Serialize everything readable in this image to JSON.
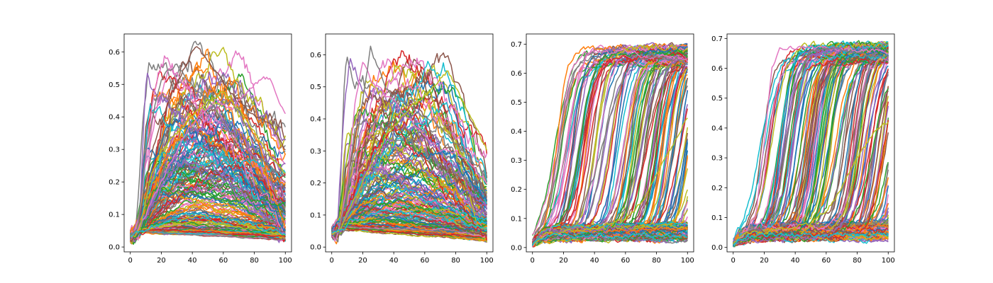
{
  "figure": {
    "panel_count": 4
  },
  "palette": [
    "#1f77b4",
    "#ff7f0e",
    "#2ca02c",
    "#d62728",
    "#9467bd",
    "#8c564b",
    "#e377c2",
    "#7f7f7f",
    "#bcbd22",
    "#17becf"
  ],
  "chart_data": [
    {
      "type": "line",
      "title": "",
      "xlabel": "",
      "ylabel": "",
      "xlim": [
        -4,
        104
      ],
      "ylim": [
        -0.015,
        0.655
      ],
      "x_ticks": [
        0,
        20,
        40,
        60,
        80,
        100
      ],
      "x_tick_labels": [
        "0",
        "20",
        "40",
        "60",
        "80",
        "100"
      ],
      "y_ticks": [
        0.0,
        0.1,
        0.2,
        0.3,
        0.4,
        0.5,
        0.6
      ],
      "y_tick_labels": [
        "0.0",
        "0.1",
        "0.2",
        "0.3",
        "0.4",
        "0.5",
        "0.6"
      ],
      "grid": false,
      "legend": "none",
      "series_count": 200,
      "pattern": "rise-and-fall",
      "x": {
        "start": 0,
        "end": 100,
        "step": 1
      },
      "start_value": 0.03,
      "peak_range": [
        0.04,
        0.6
      ],
      "peak_x_range": [
        10,
        75
      ],
      "end_range": [
        0.02,
        0.4
      ],
      "series": [
        {
          "x": [
            0,
            5,
            12,
            20,
            30,
            42,
            50,
            60,
            70,
            80,
            90,
            100
          ],
          "y": [
            0.03,
            0.06,
            0.25,
            0.4,
            0.5,
            0.62,
            0.57,
            0.5,
            0.45,
            0.4,
            0.38,
            0.3
          ]
        },
        {
          "x": [
            0,
            5,
            15,
            25,
            35,
            45,
            55,
            65,
            75,
            85,
            90,
            100
          ],
          "y": [
            0.03,
            0.05,
            0.15,
            0.25,
            0.35,
            0.4,
            0.45,
            0.42,
            0.48,
            0.52,
            0.52,
            0.4
          ]
        },
        {
          "x": [
            0,
            5,
            10,
            20,
            30,
            40,
            50,
            60,
            70,
            80,
            90,
            100
          ],
          "y": [
            0.03,
            0.06,
            0.3,
            0.52,
            0.56,
            0.5,
            0.45,
            0.38,
            0.3,
            0.28,
            0.25,
            0.22
          ]
        },
        {
          "x": [
            0,
            6,
            12,
            20,
            30,
            40,
            50,
            60,
            70,
            80,
            90,
            100
          ],
          "y": [
            0.03,
            0.05,
            0.2,
            0.3,
            0.35,
            0.4,
            0.45,
            0.48,
            0.42,
            0.35,
            0.28,
            0.22
          ]
        },
        {
          "x": [
            0,
            5,
            15,
            25,
            35,
            45,
            55,
            65,
            75,
            85,
            95,
            100
          ],
          "y": [
            0.03,
            0.04,
            0.06,
            0.08,
            0.1,
            0.1,
            0.09,
            0.08,
            0.07,
            0.06,
            0.05,
            0.04
          ]
        }
      ]
    },
    {
      "type": "line",
      "title": "",
      "xlabel": "",
      "ylabel": "",
      "xlim": [
        -4,
        104
      ],
      "ylim": [
        -0.015,
        0.665
      ],
      "x_ticks": [
        0,
        20,
        40,
        60,
        80,
        100
      ],
      "x_tick_labels": [
        "0",
        "20",
        "40",
        "60",
        "80",
        "100"
      ],
      "y_ticks": [
        0.0,
        0.1,
        0.2,
        0.3,
        0.4,
        0.5,
        0.6
      ],
      "y_tick_labels": [
        "0.0",
        "0.1",
        "0.2",
        "0.3",
        "0.4",
        "0.5",
        "0.6"
      ],
      "grid": false,
      "legend": "none",
      "series_count": 200,
      "pattern": "rise-and-fall",
      "x": {
        "start": 0,
        "end": 100,
        "step": 1
      },
      "start_value": 0.045,
      "peak_range": [
        0.05,
        0.6
      ],
      "peak_x_range": [
        8,
        80
      ],
      "end_range": [
        0.02,
        0.3
      ],
      "series": [
        {
          "x": [
            0,
            5,
            10,
            15,
            20,
            25,
            30,
            40,
            50,
            60,
            70,
            80,
            90,
            100
          ],
          "y": [
            0.045,
            0.06,
            0.2,
            0.45,
            0.58,
            0.52,
            0.5,
            0.45,
            0.4,
            0.35,
            0.3,
            0.3,
            0.25,
            0.2
          ]
        },
        {
          "x": [
            0,
            5,
            15,
            25,
            35,
            45,
            55,
            65,
            75,
            85,
            95,
            100
          ],
          "y": [
            0.045,
            0.06,
            0.3,
            0.62,
            0.5,
            0.45,
            0.42,
            0.4,
            0.35,
            0.3,
            0.25,
            0.2
          ]
        },
        {
          "x": [
            0,
            5,
            15,
            25,
            35,
            45,
            55,
            65,
            75,
            85,
            95,
            100
          ],
          "y": [
            0.045,
            0.05,
            0.15,
            0.25,
            0.35,
            0.4,
            0.45,
            0.5,
            0.55,
            0.45,
            0.35,
            0.3
          ]
        },
        {
          "x": [
            0,
            6,
            12,
            24,
            36,
            48,
            60,
            72,
            84,
            90,
            95,
            100
          ],
          "y": [
            0.045,
            0.05,
            0.08,
            0.1,
            0.12,
            0.1,
            0.1,
            0.09,
            0.08,
            0.07,
            0.06,
            0.05
          ]
        }
      ]
    },
    {
      "type": "line",
      "title": "",
      "xlabel": "",
      "ylabel": "",
      "xlim": [
        -4,
        104
      ],
      "ylim": [
        -0.015,
        0.735
      ],
      "x_ticks": [
        0,
        20,
        40,
        60,
        80,
        100
      ],
      "x_tick_labels": [
        "0",
        "20",
        "40",
        "60",
        "80",
        "100"
      ],
      "y_ticks": [
        0.0,
        0.1,
        0.2,
        0.3,
        0.4,
        0.5,
        0.6,
        0.7
      ],
      "y_tick_labels": [
        "0.0",
        "0.1",
        "0.2",
        "0.3",
        "0.4",
        "0.5",
        "0.6",
        "0.7"
      ],
      "grid": false,
      "legend": "none",
      "series_count": 240,
      "pattern": "sigmoid",
      "x": {
        "start": 0,
        "end": 100,
        "step": 1
      },
      "start_value": 0.01,
      "plateau": 0.66,
      "onset_x_range": [
        15,
        150
      ],
      "low_band_fraction": 0.22,
      "series": [
        {
          "x": [
            0,
            5,
            10,
            15,
            20,
            25,
            30,
            35,
            40,
            50,
            60,
            70,
            80,
            90,
            100
          ],
          "y": [
            0.01,
            0.04,
            0.05,
            0.1,
            0.25,
            0.45,
            0.6,
            0.66,
            0.67,
            0.67,
            0.68,
            0.66,
            0.66,
            0.66,
            0.64
          ]
        },
        {
          "x": [
            0,
            5,
            10,
            20,
            30,
            40,
            50,
            60,
            70,
            80,
            90,
            100
          ],
          "y": [
            0.01,
            0.04,
            0.05,
            0.06,
            0.1,
            0.25,
            0.45,
            0.6,
            0.65,
            0.66,
            0.65,
            0.64
          ]
        },
        {
          "x": [
            0,
            5,
            10,
            20,
            30,
            40,
            50,
            60,
            70,
            80,
            90,
            100
          ],
          "y": [
            0.01,
            0.04,
            0.05,
            0.05,
            0.06,
            0.07,
            0.08,
            0.1,
            0.15,
            0.25,
            0.35,
            0.45
          ]
        },
        {
          "x": [
            0,
            5,
            10,
            20,
            30,
            40,
            50,
            60,
            70,
            80,
            90,
            100
          ],
          "y": [
            0.01,
            0.03,
            0.04,
            0.04,
            0.04,
            0.04,
            0.04,
            0.04,
            0.04,
            0.04,
            0.04,
            0.04
          ]
        }
      ]
    },
    {
      "type": "line",
      "title": "",
      "xlabel": "",
      "ylabel": "",
      "xlim": [
        -4,
        104
      ],
      "ylim": [
        -0.015,
        0.715
      ],
      "x_ticks": [
        0,
        20,
        40,
        60,
        80,
        100
      ],
      "x_tick_labels": [
        "0",
        "20",
        "40",
        "60",
        "80",
        "100"
      ],
      "y_ticks": [
        0.0,
        0.1,
        0.2,
        0.3,
        0.4,
        0.5,
        0.6,
        0.7
      ],
      "y_tick_labels": [
        "0.0",
        "0.1",
        "0.2",
        "0.3",
        "0.4",
        "0.5",
        "0.6",
        "0.7"
      ],
      "grid": false,
      "legend": "none",
      "series_count": 240,
      "pattern": "sigmoid",
      "x": {
        "start": 0,
        "end": 100,
        "step": 1
      },
      "start_value": 0.01,
      "plateau": 0.65,
      "onset_x_range": [
        15,
        150
      ],
      "low_band_fraction": 0.25,
      "series": [
        {
          "x": [
            0,
            5,
            10,
            15,
            20,
            25,
            30,
            35,
            40,
            50,
            60,
            70,
            80,
            90,
            100
          ],
          "y": [
            0.01,
            0.04,
            0.06,
            0.12,
            0.35,
            0.6,
            0.66,
            0.67,
            0.67,
            0.67,
            0.67,
            0.66,
            0.66,
            0.66,
            0.65
          ]
        },
        {
          "x": [
            0,
            5,
            10,
            20,
            30,
            40,
            50,
            60,
            70,
            80,
            90,
            100
          ],
          "y": [
            0.01,
            0.04,
            0.05,
            0.07,
            0.2,
            0.55,
            0.66,
            0.67,
            0.66,
            0.65,
            0.64,
            0.64
          ]
        },
        {
          "x": [
            0,
            5,
            10,
            20,
            30,
            40,
            50,
            60,
            70,
            80,
            90,
            100
          ],
          "y": [
            0.01,
            0.04,
            0.05,
            0.05,
            0.06,
            0.07,
            0.08,
            0.12,
            0.2,
            0.3,
            0.38,
            0.42
          ]
        },
        {
          "x": [
            0,
            5,
            10,
            20,
            30,
            40,
            50,
            60,
            70,
            80,
            90,
            100
          ],
          "y": [
            0.01,
            0.03,
            0.04,
            0.04,
            0.04,
            0.04,
            0.04,
            0.04,
            0.04,
            0.04,
            0.04,
            0.04
          ]
        }
      ]
    }
  ]
}
